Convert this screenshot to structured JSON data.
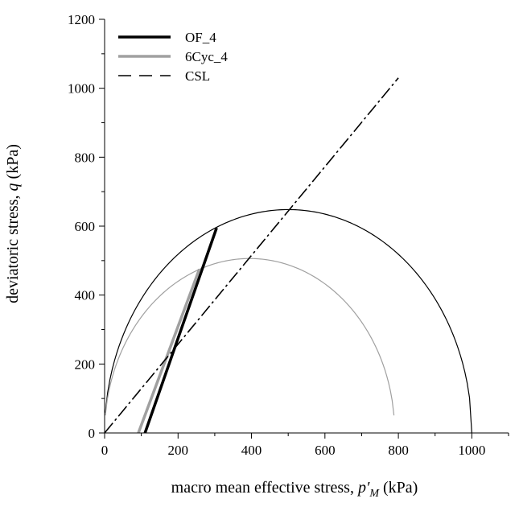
{
  "chart_data": {
    "type": "line",
    "xlabel": {
      "main": "macro mean effective stress, ",
      "var": "p′",
      "sub": "M",
      "unit": " (kPa)"
    },
    "ylabel": {
      "main": "deviatoric stress, ",
      "var": "q",
      "unit": " (kPa)"
    },
    "xlim": [
      0,
      1100
    ],
    "ylim": [
      0,
      1200
    ],
    "xticks": [
      "0",
      "200",
      "400",
      "600",
      "800",
      "1000"
    ],
    "yticks": [
      "0",
      "200",
      "400",
      "600",
      "800",
      "1000",
      "1200"
    ],
    "xtick_values": [
      0,
      200,
      400,
      600,
      800,
      1000
    ],
    "ytick_values": [
      0,
      200,
      400,
      600,
      800,
      1000,
      1200
    ],
    "grid": false,
    "legend_position": "top-left",
    "series": [
      {
        "name": "OF_4",
        "color": "#000000",
        "style": "solid-thick",
        "x": [
          110,
          305
        ],
        "y": [
          0,
          595
        ]
      },
      {
        "name": "6Cyc_4",
        "color": "#a0a0a0",
        "style": "solid-thick",
        "x": [
          92,
          258
        ],
        "y": [
          0,
          475
        ]
      },
      {
        "name": "CSL",
        "color": "#000000",
        "style": "dashed",
        "x": [
          0,
          800
        ],
        "y": [
          0,
          1030
        ]
      }
    ],
    "yield_surfaces": [
      {
        "color": "#000000",
        "center": 500,
        "radius_p": 500,
        "peak_q": 648,
        "x_start": 2,
        "x_end": 1000
      },
      {
        "color": "#a0a0a0",
        "center": 395,
        "radius_p": 395,
        "peak_q": 506,
        "x_start": 2,
        "x_end": 788
      }
    ]
  }
}
